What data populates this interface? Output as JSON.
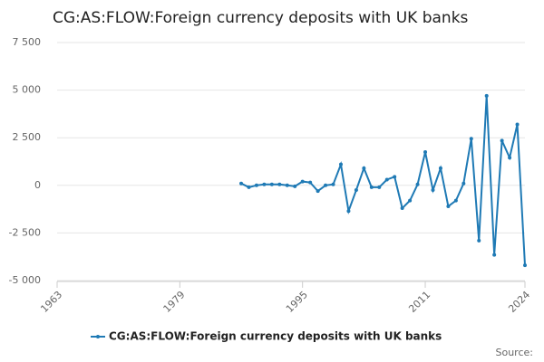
{
  "chart_data": {
    "type": "line",
    "title": "CG:AS:FLOW:Foreign currency deposits with UK banks",
    "source": "Source:",
    "xlim": [
      1963,
      2024
    ],
    "xticks": [
      1963,
      1979,
      1995,
      2011,
      2024
    ],
    "ylim": [
      -5000,
      7500
    ],
    "yticks": [
      {
        "value": -5000,
        "label": "-5 000"
      },
      {
        "value": -2500,
        "label": "-2 500"
      },
      0,
      {
        "value": 2500,
        "label": "2 500"
      },
      {
        "value": 5000,
        "label": "5 000"
      },
      {
        "value": 7500,
        "label": "7 500"
      }
    ],
    "grid": true,
    "x": [
      1987,
      1988,
      1989,
      1990,
      1991,
      1992,
      1993,
      1994,
      1995,
      1996,
      1997,
      1998,
      1999,
      2000,
      2001,
      2002,
      2003,
      2004,
      2005,
      2006,
      2007,
      2008,
      2009,
      2010,
      2011,
      2012,
      2013,
      2014,
      2015,
      2016,
      2017,
      2018,
      2019,
      2020,
      2021,
      2022,
      2023,
      2024
    ],
    "series": [
      {
        "name": "CG:AS:FLOW:Foreign currency deposits with UK banks",
        "color": "#1f7ab5",
        "values": [
          100,
          -100,
          0,
          50,
          50,
          50,
          0,
          -50,
          200,
          150,
          -300,
          0,
          50,
          1100,
          -1350,
          -250,
          900,
          -100,
          -100,
          300,
          450,
          -1200,
          -800,
          50,
          1750,
          -250,
          900,
          -1100,
          -800,
          100,
          2450,
          -2900,
          4700,
          -3650,
          2350,
          1450,
          3200,
          -4200
        ]
      }
    ]
  }
}
